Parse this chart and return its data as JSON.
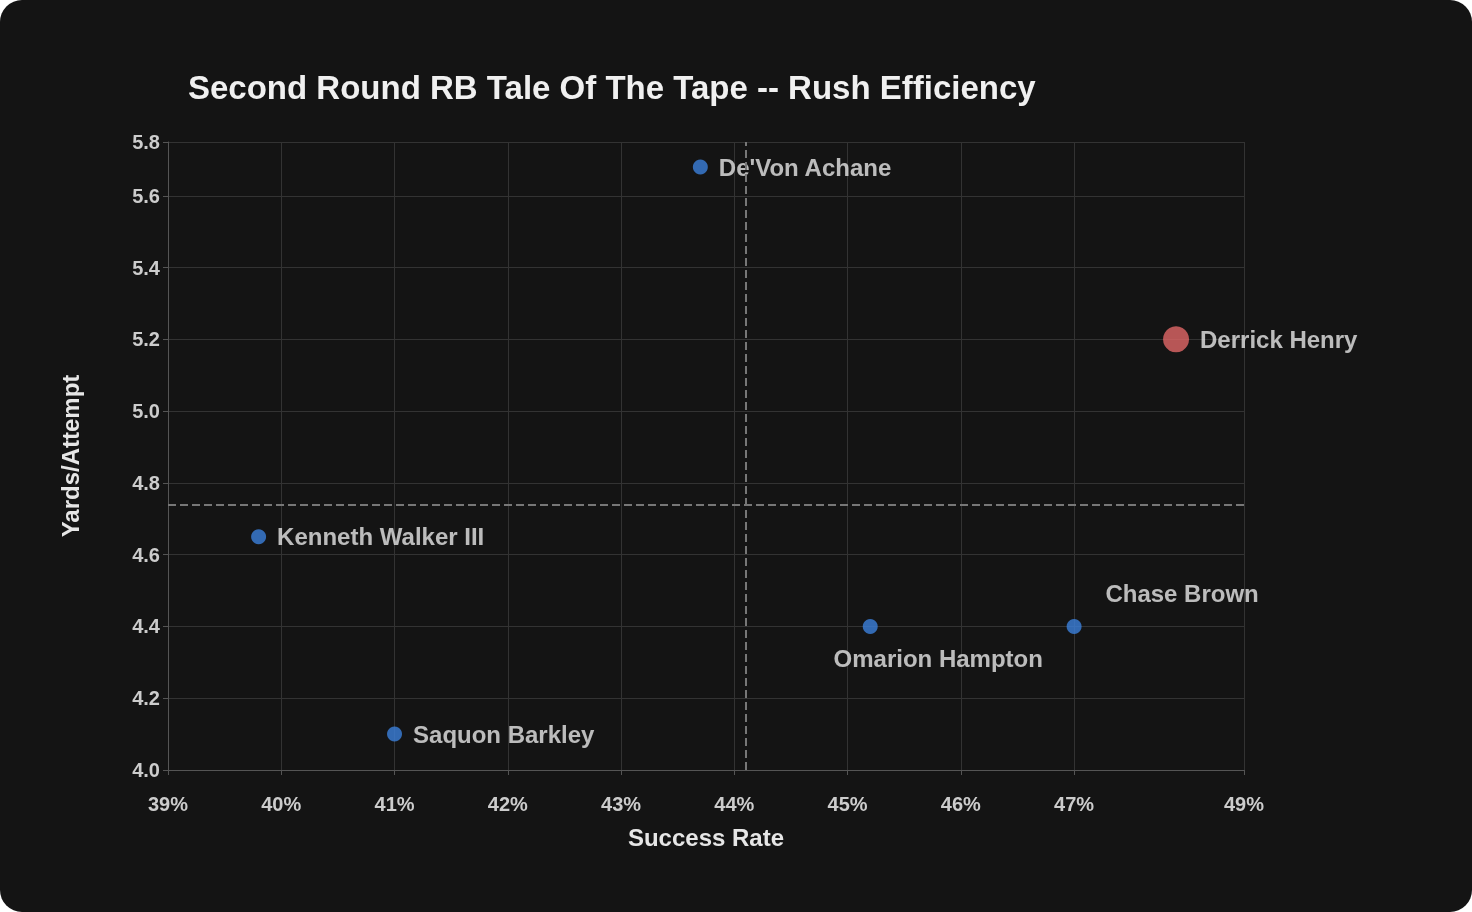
{
  "chart_data": {
    "type": "scatter",
    "title": "Second Round RB Tale Of The Tape -- Rush Efficiency",
    "xlabel": "Success Rate",
    "ylabel": "Yards/Attempt",
    "xlim": [
      39,
      48.5
    ],
    "ylim": [
      4.0,
      5.75
    ],
    "xticks": [
      {
        "value": 39,
        "label": "39%"
      },
      {
        "value": 40,
        "label": "40%"
      },
      {
        "value": 41,
        "label": "41%"
      },
      {
        "value": 42,
        "label": "42%"
      },
      {
        "value": 43,
        "label": "43%"
      },
      {
        "value": 44,
        "label": "44%"
      },
      {
        "value": 45,
        "label": "45%"
      },
      {
        "value": 46,
        "label": "46%"
      },
      {
        "value": 47,
        "label": "47%"
      },
      {
        "value": 48.5,
        "label": "49%"
      }
    ],
    "yticks": [
      {
        "value": 4.0,
        "label": "4.0"
      },
      {
        "value": 4.2,
        "label": "4.2"
      },
      {
        "value": 4.4,
        "label": "4.4"
      },
      {
        "value": 4.6,
        "label": "4.6"
      },
      {
        "value": 4.8,
        "label": "4.8"
      },
      {
        "value": 5.0,
        "label": "5.0"
      },
      {
        "value": 5.2,
        "label": "5.2"
      },
      {
        "value": 5.4,
        "label": "5.4"
      },
      {
        "value": 5.6,
        "label": "5.6"
      },
      {
        "value": 5.75,
        "label": "5.8"
      }
    ],
    "grid": true,
    "legend": false,
    "marker": "circle",
    "ref_lines": [
      {
        "axis": "x",
        "value": 44.1,
        "color": "#777777",
        "line_style": "dashed"
      },
      {
        "axis": "y",
        "value": 4.74,
        "color": "#777777",
        "line_style": "dashed"
      }
    ],
    "series": [
      {
        "name": "De'Von Achane",
        "color": "#3b7fdb",
        "x": [
          43.7
        ],
        "values": [
          5.68
        ]
      },
      {
        "name": "Derrick Henry",
        "color": "#e06666",
        "x": [
          47.9
        ],
        "values": [
          5.2
        ]
      },
      {
        "name": "Kenneth Walker III",
        "color": "#3b7fdb",
        "x": [
          39.8
        ],
        "values": [
          4.65
        ]
      },
      {
        "name": "Omarion Hampton",
        "color": "#3b7fdb",
        "x": [
          45.2
        ],
        "values": [
          4.4
        ]
      },
      {
        "name": "Chase Brown",
        "color": "#3b7fdb",
        "x": [
          47.0
        ],
        "values": [
          4.4
        ]
      },
      {
        "name": "Saquon Barkley",
        "color": "#3b7fdb",
        "x": [
          41.0
        ],
        "values": [
          4.1
        ]
      }
    ]
  }
}
